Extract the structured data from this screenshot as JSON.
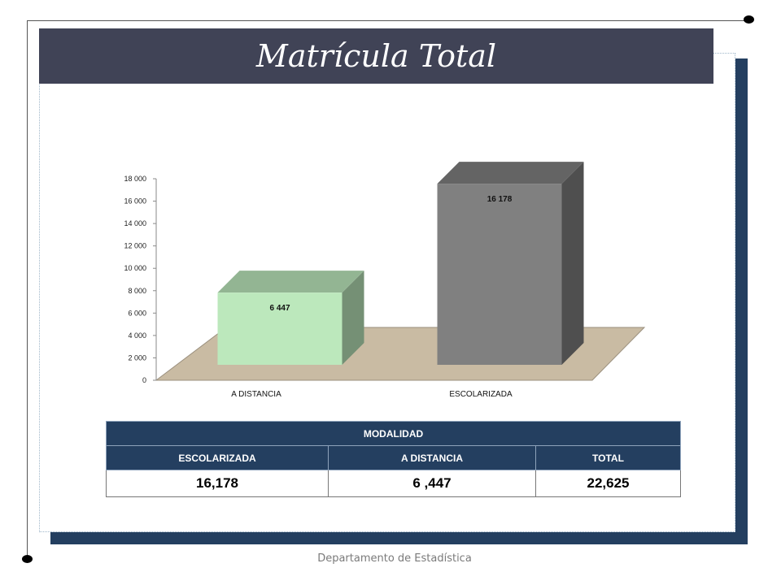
{
  "slide": {
    "title": "Matrícula Total",
    "footer": "Departamento de Estadística"
  },
  "chart_data": {
    "type": "bar",
    "categories": [
      "A DISTANCIA",
      "ESCOLARIZADA"
    ],
    "values": [
      6447,
      16178
    ],
    "data_labels": [
      "6 447",
      "16 178"
    ],
    "ylim": [
      0,
      18000
    ],
    "yticks": [
      0,
      2000,
      4000,
      6000,
      8000,
      10000,
      12000,
      14000,
      16000,
      18000
    ],
    "ytick_labels": [
      "0",
      "2 000",
      "4 000",
      "6 000",
      "8 000",
      "10 000",
      "12 000",
      "14 000",
      "16 000",
      "18 000"
    ],
    "colors": [
      "#bce8bc",
      "#808080"
    ],
    "grid": false,
    "style": "3d"
  },
  "table": {
    "header": "MODALIDAD",
    "columns": [
      "ESCOLARIZADA",
      "A DISTANCIA",
      "TOTAL"
    ],
    "values": [
      "16,178",
      "6 ,447",
      "22,625"
    ]
  }
}
